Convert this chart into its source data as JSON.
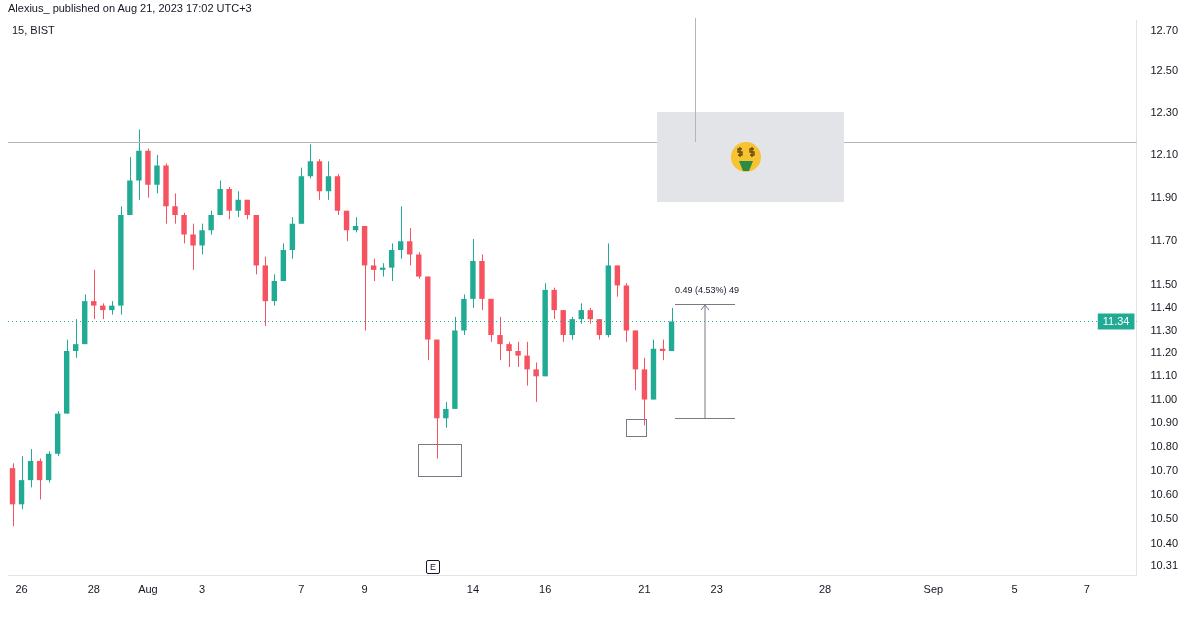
{
  "chart_data": {
    "type": "candlestick",
    "title": "15, BIST",
    "categories": [
      null,
      "26",
      null,
      null,
      null,
      null,
      null,
      null,
      null,
      "28",
      null,
      null,
      null,
      null,
      null,
      "Aug",
      null,
      null,
      null,
      null,
      null,
      "3",
      null,
      null,
      null,
      null,
      null,
      null,
      null,
      null,
      null,
      null,
      "7",
      null,
      null,
      null,
      null,
      null,
      null,
      "9",
      null,
      null,
      null,
      null,
      null,
      null,
      null,
      null,
      null,
      null,
      null,
      "14",
      null,
      null,
      null,
      null,
      null,
      null,
      null,
      "16",
      null,
      null,
      null,
      null,
      null,
      null,
      null,
      null,
      null,
      null,
      "21",
      null,
      null,
      null,
      null,
      null,
      null,
      null,
      "23",
      null,
      null,
      null,
      null,
      null,
      null,
      null,
      null,
      null,
      null,
      null,
      "28",
      null,
      null,
      null,
      null,
      null,
      null,
      null,
      null,
      null,
      null,
      null,
      "Sep",
      null,
      null,
      null,
      null,
      null,
      null,
      null,
      null,
      "5",
      null,
      null,
      null,
      null,
      null,
      null,
      null,
      "7",
      null,
      null,
      null,
      null,
      null
    ],
    "ohlc": [
      [
        10.71,
        10.73,
        10.47,
        10.56
      ],
      [
        10.56,
        10.76,
        10.54,
        10.66
      ],
      [
        10.66,
        10.79,
        10.63,
        10.74
      ],
      [
        10.74,
        10.75,
        10.58,
        10.66
      ],
      [
        10.66,
        10.78,
        10.65,
        10.77
      ],
      [
        10.77,
        10.95,
        10.76,
        10.94
      ],
      [
        10.94,
        11.26,
        10.94,
        11.21
      ],
      [
        11.21,
        11.35,
        11.18,
        11.24
      ],
      [
        11.24,
        11.46,
        11.24,
        11.43
      ],
      [
        11.43,
        11.57,
        11.35,
        11.41
      ],
      [
        11.41,
        11.42,
        11.35,
        11.39
      ],
      [
        11.39,
        11.43,
        11.37,
        11.41
      ],
      [
        11.41,
        11.86,
        11.37,
        11.82
      ],
      [
        11.82,
        12.09,
        11.82,
        11.98
      ],
      [
        11.98,
        12.22,
        11.89,
        12.12
      ],
      [
        12.12,
        12.13,
        11.9,
        11.96
      ],
      [
        11.96,
        12.1,
        11.92,
        12.05
      ],
      [
        12.05,
        12.06,
        11.78,
        11.86
      ],
      [
        11.86,
        11.92,
        11.78,
        11.82
      ],
      [
        11.82,
        11.83,
        11.69,
        11.73
      ],
      [
        11.73,
        11.78,
        11.57,
        11.68
      ],
      [
        11.68,
        11.78,
        11.64,
        11.75
      ],
      [
        11.75,
        11.84,
        11.73,
        11.82
      ],
      [
        11.82,
        11.98,
        11.82,
        11.94
      ],
      [
        11.94,
        11.95,
        11.8,
        11.84
      ],
      [
        11.84,
        11.93,
        11.81,
        11.89
      ],
      [
        11.89,
        11.89,
        11.8,
        11.82
      ],
      [
        11.82,
        11.82,
        11.55,
        11.59
      ],
      [
        11.59,
        11.63,
        11.32,
        11.43
      ],
      [
        11.43,
        11.55,
        11.41,
        11.52
      ],
      [
        11.52,
        11.69,
        11.52,
        11.66
      ],
      [
        11.66,
        11.81,
        11.62,
        11.78
      ],
      [
        11.78,
        12.04,
        11.78,
        12.0
      ],
      [
        12.0,
        12.15,
        11.99,
        12.07
      ],
      [
        12.07,
        12.08,
        11.89,
        11.93
      ],
      [
        11.93,
        12.07,
        11.89,
        12.0
      ],
      [
        12.0,
        12.01,
        11.82,
        11.84
      ],
      [
        11.84,
        11.84,
        11.7,
        11.75
      ],
      [
        11.75,
        11.81,
        11.74,
        11.77
      ],
      [
        11.77,
        11.77,
        11.3,
        11.59
      ],
      [
        11.59,
        11.62,
        11.52,
        11.57
      ],
      [
        11.57,
        11.6,
        11.54,
        11.58
      ],
      [
        11.58,
        11.69,
        11.52,
        11.66
      ],
      [
        11.66,
        11.86,
        11.62,
        11.7
      ],
      [
        11.7,
        11.76,
        11.59,
        11.64
      ],
      [
        11.64,
        11.65,
        11.53,
        11.54
      ],
      [
        11.54,
        11.54,
        11.17,
        11.26
      ],
      [
        11.26,
        11.26,
        10.75,
        10.92
      ],
      [
        10.92,
        10.99,
        10.88,
        10.96
      ],
      [
        10.96,
        11.36,
        10.96,
        11.3
      ],
      [
        11.3,
        11.46,
        11.28,
        11.44
      ],
      [
        11.44,
        11.71,
        11.4,
        11.61
      ],
      [
        11.61,
        11.64,
        11.39,
        11.44
      ],
      [
        11.44,
        11.44,
        11.25,
        11.28
      ],
      [
        11.28,
        11.36,
        11.17,
        11.24
      ],
      [
        11.24,
        11.25,
        11.14,
        11.21
      ],
      [
        11.21,
        11.25,
        11.14,
        11.19
      ],
      [
        11.19,
        11.25,
        11.06,
        11.13
      ],
      [
        11.13,
        11.16,
        10.99,
        11.1
      ],
      [
        11.1,
        11.51,
        11.1,
        11.48
      ],
      [
        11.48,
        11.49,
        11.35,
        11.39
      ],
      [
        11.39,
        11.39,
        11.25,
        11.28
      ],
      [
        11.28,
        11.36,
        11.26,
        11.35
      ],
      [
        11.35,
        11.42,
        11.33,
        11.39
      ],
      [
        11.39,
        11.4,
        11.33,
        11.35
      ],
      [
        11.35,
        11.35,
        11.26,
        11.28
      ],
      [
        11.28,
        11.69,
        11.27,
        11.59
      ],
      [
        11.59,
        11.59,
        11.45,
        11.5
      ],
      [
        11.5,
        11.51,
        11.25,
        11.3
      ],
      [
        11.3,
        11.3,
        11.04,
        11.13
      ],
      [
        11.13,
        11.18,
        10.89,
        11.0
      ],
      [
        11.0,
        11.26,
        11.0,
        11.22
      ],
      [
        11.22,
        11.26,
        11.17,
        11.21
      ],
      [
        11.21,
        11.4,
        11.21,
        11.34
      ],
      null,
      null,
      null,
      null,
      null,
      null,
      null,
      null,
      null,
      null,
      null,
      null,
      null,
      null,
      null,
      null,
      null,
      null,
      null,
      null,
      null,
      null,
      null,
      null,
      null,
      null,
      null,
      null,
      null,
      null,
      null,
      null,
      null,
      null,
      null,
      null,
      null,
      null,
      null,
      null,
      null,
      null,
      null,
      null,
      null,
      null,
      null,
      null,
      null,
      null,
      null
    ],
    "colors": [
      "#f7525f",
      "#22ab94",
      "#22ab94",
      "#f7525f",
      "#22ab94",
      "#22ab94",
      "#22ab94",
      "#22ab94",
      "#22ab94",
      "#f7525f",
      "#f7525f",
      "#22ab94",
      "#22ab94",
      "#22ab94",
      "#22ab94",
      "#f7525f",
      "#22ab94",
      "#f7525f",
      "#f7525f",
      "#f7525f",
      "#f7525f",
      "#22ab94",
      "#22ab94",
      "#22ab94",
      "#f7525f",
      "#22ab94",
      "#f7525f",
      "#f7525f",
      "#f7525f",
      "#22ab94",
      "#22ab94",
      "#22ab94",
      "#22ab94",
      "#22ab94",
      "#f7525f",
      "#22ab94",
      "#f7525f",
      "#f7525f",
      "#22ab94",
      "#f7525f",
      "#f7525f",
      "#22ab94",
      "#22ab94",
      "#22ab94",
      "#f7525f",
      "#f7525f",
      "#f7525f",
      "#f7525f",
      "#22ab94",
      "#22ab94",
      "#22ab94",
      "#22ab94",
      "#f7525f",
      "#f7525f",
      "#f7525f",
      "#f7525f",
      "#f7525f",
      "#f7525f",
      "#f7525f",
      "#22ab94",
      "#f7525f",
      "#f7525f",
      "#22ab94",
      "#22ab94",
      "#f7525f",
      "#f7525f",
      "#22ab94",
      "#f7525f",
      "#f7525f",
      "#f7525f",
      "#f7525f",
      "#22ab94",
      "#f7525f",
      "#22ab94",
      null,
      null,
      null,
      null,
      null,
      null,
      null,
      null,
      null,
      null,
      null,
      null,
      null,
      null,
      null,
      null,
      null,
      null,
      null,
      null,
      null,
      null,
      null,
      null,
      null,
      null,
      null,
      null,
      null,
      null,
      null,
      null,
      null,
      null,
      null,
      null,
      null,
      null,
      null,
      null,
      null,
      null,
      null,
      null,
      null,
      null,
      null,
      null,
      null,
      null,
      null
    ],
    "log": true,
    "ylim": [
      10.27,
      12.75
    ],
    "yticks": [
      {
        "value": 10.31,
        "label": "10.31"
      },
      {
        "value": 10.4,
        "label": "10.40"
      },
      {
        "value": 10.5,
        "label": "10.50"
      },
      {
        "value": 10.6,
        "label": "10.60"
      },
      {
        "value": 10.7,
        "label": "10.70"
      },
      {
        "value": 10.8,
        "label": "10.80"
      },
      {
        "value": 10.9,
        "label": "10.90"
      },
      {
        "value": 11,
        "label": "11.00"
      },
      {
        "value": 11.1,
        "label": "11.10"
      },
      {
        "value": 11.2,
        "label": "11.20"
      },
      {
        "value": 11.3,
        "label": "11.30"
      },
      {
        "value": 11.4,
        "label": "11.40"
      },
      {
        "value": 11.5,
        "label": "11.50"
      },
      {
        "value": 11.7,
        "label": "11.70"
      },
      {
        "value": 11.9,
        "label": "11.90"
      },
      {
        "value": 12.1,
        "label": "12.10"
      },
      {
        "value": 12.3,
        "label": "12.30"
      },
      {
        "value": 12.5,
        "label": "12.50"
      },
      {
        "value": 12.7,
        "label": "12.70"
      }
    ],
    "grid": false,
    "legend": false,
    "ref_lines": [
      {
        "axis": "y",
        "value": 12.16,
        "color": "#b2b5be"
      },
      {
        "axis": "y",
        "value": 11.34,
        "label": "11.34",
        "color": "#22ab94",
        "line_style": "dotted"
      }
    ],
    "annotations": [
      "Alexius_ published on Aug 21, 2023 17:02 UTC+3",
      "E",
      "0.49 (4.53%) 49"
    ]
  }
}
